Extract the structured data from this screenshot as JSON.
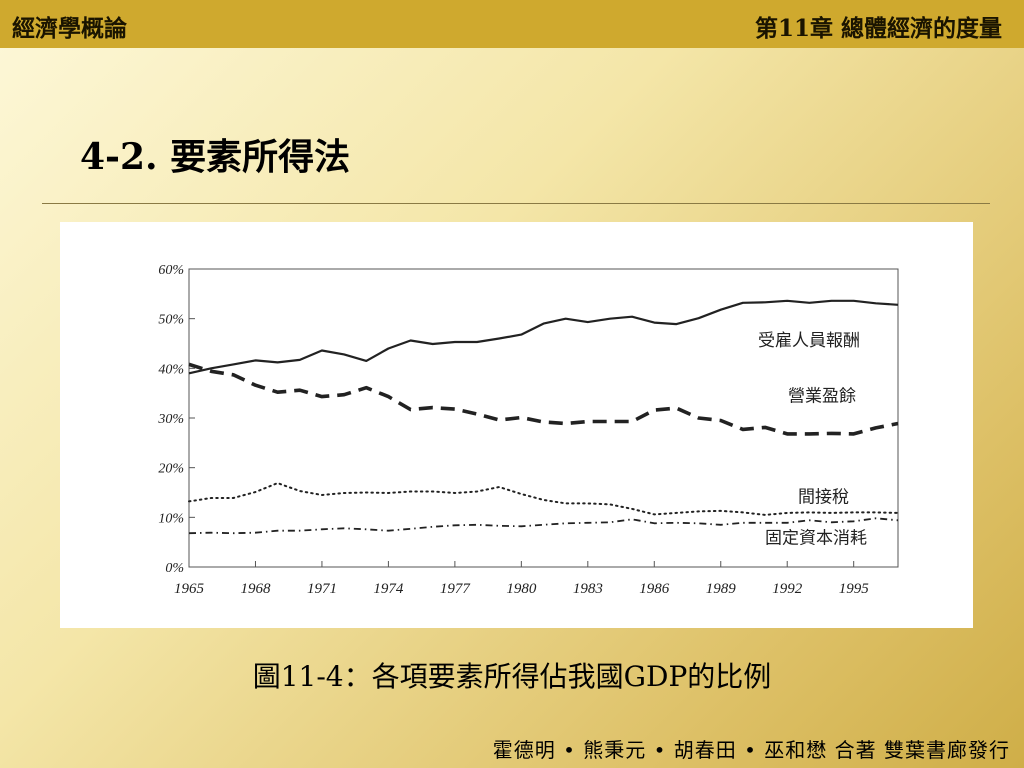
{
  "header": {
    "book_title": "經濟學概論",
    "chapter_title": "第11章 總體經濟的度量"
  },
  "section_title": "4-2. 要素所得法",
  "caption": "圖11-4：各項要素所得佔我國GDP的比例",
  "footer": "霍德明 • 熊秉元 • 胡春田 • 巫和懋 合著 雙葉書廊發行",
  "colors": {
    "topbar": "#cfa92e",
    "series": "#222222"
  },
  "chart_data": {
    "type": "line",
    "title": "",
    "xlabel": "",
    "ylabel": "",
    "x": [
      1965,
      1966,
      1967,
      1968,
      1969,
      1970,
      1971,
      1972,
      1973,
      1974,
      1975,
      1976,
      1977,
      1978,
      1979,
      1980,
      1981,
      1982,
      1983,
      1984,
      1985,
      1986,
      1987,
      1988,
      1989,
      1990,
      1991,
      1992,
      1993,
      1994,
      1995,
      1996,
      1997
    ],
    "xlim": [
      1965,
      1997
    ],
    "x_tick_labels": [
      "1965",
      "1968",
      "1971",
      "1974",
      "1977",
      "1980",
      "1983",
      "1986",
      "1989",
      "1992",
      "1995"
    ],
    "ylim": [
      0,
      60
    ],
    "y_tick_labels": [
      "0%",
      "10%",
      "20%",
      "30%",
      "40%",
      "50%",
      "60%"
    ],
    "grid": false,
    "series": [
      {
        "name": "受雇人員報酬",
        "style": "solid",
        "values": [
          39,
          40,
          40.8,
          41.6,
          41.2,
          41.7,
          43.6,
          42.8,
          41.5,
          44,
          45.6,
          44.9,
          45.3,
          45.3,
          46,
          46.8,
          49,
          50,
          49.3,
          50,
          50.4,
          49.2,
          48.9,
          50.1,
          51.8,
          53.2,
          53.3,
          53.6,
          53.2,
          53.6,
          53.6,
          53.1,
          52.8
        ]
      },
      {
        "name": "營業盈餘",
        "style": "dashed",
        "values": [
          40.8,
          39.4,
          38.7,
          36.6,
          35.2,
          35.6,
          34.3,
          34.7,
          36.1,
          34.3,
          31.7,
          32.1,
          31.8,
          30.8,
          29.6,
          30.1,
          29.2,
          28.9,
          29.3,
          29.3,
          29.3,
          31.6,
          32,
          30,
          29.5,
          27.7,
          28.1,
          26.8,
          26.8,
          26.9,
          26.8,
          28,
          28.9
        ]
      },
      {
        "name": "間接稅",
        "style": "dotted",
        "values": [
          13.2,
          13.9,
          13.9,
          15.1,
          16.9,
          15.3,
          14.5,
          14.9,
          15,
          14.9,
          15.2,
          15.2,
          14.9,
          15.2,
          16.1,
          14.7,
          13.5,
          12.8,
          12.8,
          12.6,
          11.7,
          10.6,
          10.9,
          11.2,
          11.3,
          11,
          10.5,
          10.9,
          11,
          10.9,
          11,
          11,
          10.9
        ]
      },
      {
        "name": "固定資本消耗",
        "style": "dashdot",
        "values": [
          6.8,
          6.9,
          6.8,
          6.9,
          7.3,
          7.3,
          7.6,
          7.8,
          7.6,
          7.3,
          7.7,
          8.1,
          8.4,
          8.5,
          8.3,
          8.2,
          8.5,
          8.8,
          8.9,
          9,
          9.6,
          8.8,
          8.9,
          8.8,
          8.5,
          8.9,
          8.9,
          8.9,
          9.4,
          9,
          9.2,
          9.8,
          9.4
        ]
      }
    ]
  }
}
